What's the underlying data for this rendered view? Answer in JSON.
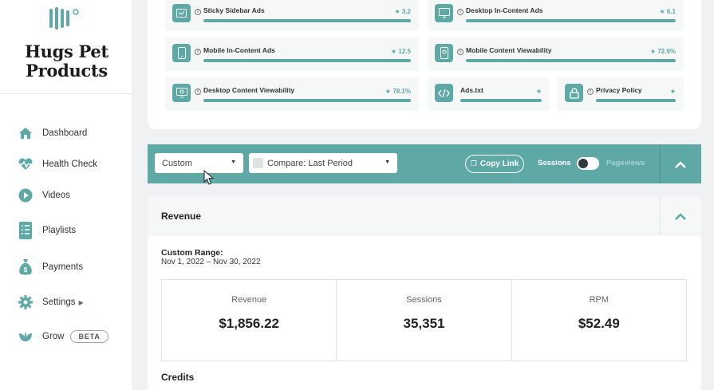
{
  "sidebar": {
    "brand": "Hugs Pet Products",
    "nav": [
      {
        "label": "Dashboard",
        "icon": "home-icon"
      },
      {
        "label": "Health Check",
        "icon": "heartbeat-icon"
      },
      {
        "label": "Videos",
        "icon": "play-icon"
      },
      {
        "label": "Playlists",
        "icon": "list-icon"
      },
      {
        "label": "Payments",
        "icon": "money-bag-icon"
      },
      {
        "label": "Settings",
        "icon": "gear-icon"
      },
      {
        "label": "Grow",
        "icon": "sprout-icon",
        "badge": "BETA"
      }
    ]
  },
  "checks": [
    {
      "title": "Sticky Sidebar Ads",
      "score": "3.2",
      "icon": "sidebar-ad-icon"
    },
    {
      "title": "Desktop In-Content Ads",
      "score": "6.1",
      "icon": "desktop-icon"
    },
    {
      "title": "Mobile In-Content Ads",
      "score": "12.5",
      "icon": "mobile-icon"
    },
    {
      "title": "Mobile Content Viewability",
      "score": "72.9%",
      "icon": "mobile-view-icon"
    },
    {
      "title": "Desktop Content Viewability",
      "score": "78.1%",
      "icon": "desktop-view-icon"
    },
    {
      "title": "Ads.txt",
      "score": "",
      "icon": "code-icon"
    },
    {
      "title": "Privacy Policy",
      "score": "",
      "icon": "lock-icon"
    }
  ],
  "filters": {
    "range_select": "Custom",
    "compare_select": "Compare: Last Period",
    "copy_link": "Copy Link",
    "toggle_left": "Sessions",
    "toggle_right": "Pageviews"
  },
  "revenue": {
    "title": "Revenue",
    "range_label": "Custom Range:",
    "range_value": "Nov 1, 2022 – Nov 30, 2022",
    "metrics": [
      {
        "label": "Revenue",
        "value": "$1,856.22"
      },
      {
        "label": "Sessions",
        "value": "35,351"
      },
      {
        "label": "RPM",
        "value": "$52.49"
      }
    ],
    "credits_title": "Credits"
  },
  "colors": {
    "accent": "#5ea8a6",
    "dark": "#2f3a3c",
    "background": "#eff1f2"
  }
}
